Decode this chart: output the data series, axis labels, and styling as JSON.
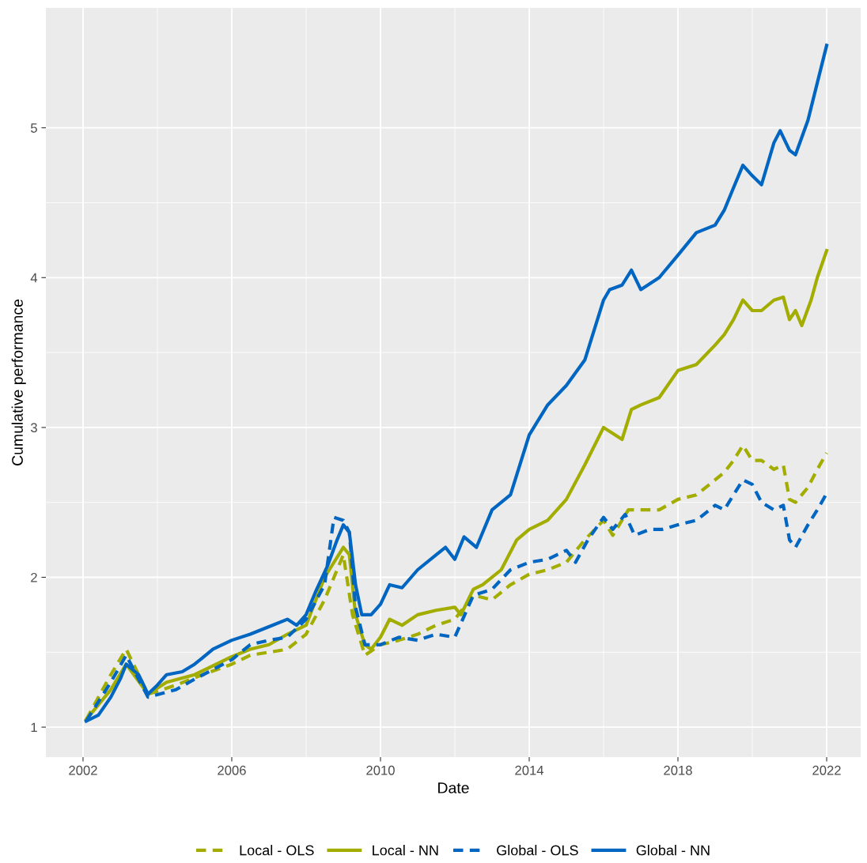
{
  "chart_data": {
    "type": "line",
    "xlabel": "Date",
    "ylabel": "Cumulative performance",
    "xlim": [
      "2001-01",
      "2022-12"
    ],
    "xticks": [
      "2002",
      "2006",
      "2010",
      "2014",
      "2018",
      "2022"
    ],
    "ylim": [
      0.8,
      5.8
    ],
    "yticks": [
      1,
      2,
      3,
      4,
      5
    ],
    "grid": true,
    "legend": "bottom",
    "series": [
      {
        "name": "Local - OLS",
        "color": "#a3ad00",
        "line_style": "dashed",
        "x": [
          "2002-02",
          "2002-10",
          "2003-03",
          "2003-10",
          "2004-07",
          "2005-01",
          "2006-01",
          "2006-07",
          "2007-01",
          "2007-07",
          "2008-01",
          "2008-07",
          "2009-01",
          "2009-04",
          "2009-08",
          "2010-01",
          "2010-07",
          "2011-01",
          "2011-07",
          "2012-01",
          "2012-07",
          "2013-01",
          "2013-07",
          "2014-01",
          "2014-07",
          "2015-01",
          "2015-07",
          "2016-01",
          "2016-04",
          "2016-09",
          "2017-01",
          "2017-07",
          "2018-01",
          "2018-07",
          "2019-01",
          "2019-04",
          "2019-07",
          "2019-10",
          "2020-01",
          "2020-04",
          "2020-08",
          "2020-11",
          "2021-01",
          "2021-03",
          "2021-07",
          "2021-10",
          "2022-01"
        ],
        "values": [
          1.05,
          1.35,
          1.52,
          1.22,
          1.28,
          1.33,
          1.42,
          1.48,
          1.5,
          1.52,
          1.62,
          1.85,
          2.15,
          1.75,
          1.48,
          1.55,
          1.58,
          1.62,
          1.68,
          1.72,
          1.88,
          1.85,
          1.95,
          2.02,
          2.05,
          2.1,
          2.25,
          2.38,
          2.28,
          2.45,
          2.45,
          2.45,
          2.52,
          2.55,
          2.65,
          2.7,
          2.78,
          2.88,
          2.78,
          2.78,
          2.72,
          2.75,
          2.52,
          2.5,
          2.6,
          2.72,
          2.83
        ]
      },
      {
        "name": "Local - NN",
        "color": "#a3ad00",
        "line_style": "solid",
        "x": [
          "2002-02",
          "2002-10",
          "2003-03",
          "2003-10",
          "2004-04",
          "2005-01",
          "2006-01",
          "2006-07",
          "2007-01",
          "2007-07",
          "2008-01",
          "2008-07",
          "2008-10",
          "2009-01",
          "2009-03",
          "2009-05",
          "2009-08",
          "2009-10",
          "2010-01",
          "2010-04",
          "2010-08",
          "2011-01",
          "2011-07",
          "2012-01",
          "2012-03",
          "2012-07",
          "2012-10",
          "2013-04",
          "2013-09",
          "2014-01",
          "2014-07",
          "2015-01",
          "2015-07",
          "2016-01",
          "2016-07",
          "2016-10",
          "2017-01",
          "2017-07",
          "2018-01",
          "2018-07",
          "2019-01",
          "2019-04",
          "2019-07",
          "2019-10",
          "2020-01",
          "2020-04",
          "2020-08",
          "2020-11",
          "2021-01",
          "2021-03",
          "2021-05",
          "2021-08",
          "2021-10",
          "2022-01"
        ],
        "values": [
          1.05,
          1.25,
          1.42,
          1.22,
          1.3,
          1.35,
          1.47,
          1.52,
          1.55,
          1.62,
          1.68,
          2.0,
          2.1,
          2.2,
          2.15,
          1.75,
          1.55,
          1.52,
          1.6,
          1.72,
          1.68,
          1.75,
          1.78,
          1.8,
          1.75,
          1.92,
          1.95,
          2.05,
          2.25,
          2.32,
          2.38,
          2.52,
          2.75,
          3.0,
          2.92,
          3.12,
          3.15,
          3.2,
          3.38,
          3.42,
          3.55,
          3.62,
          3.72,
          3.85,
          3.78,
          3.78,
          3.85,
          3.87,
          3.72,
          3.78,
          3.68,
          3.85,
          4.0,
          4.18
        ]
      },
      {
        "name": "Global - OLS",
        "color": "#0066c2",
        "line_style": "dashed",
        "x": [
          "2002-02",
          "2002-10",
          "2003-03",
          "2003-10",
          "2004-07",
          "2005-01",
          "2006-01",
          "2006-07",
          "2007-01",
          "2007-07",
          "2008-01",
          "2008-07",
          "2008-10",
          "2009-01",
          "2009-03",
          "2009-05",
          "2009-08",
          "2010-01",
          "2010-07",
          "2011-01",
          "2011-07",
          "2012-01",
          "2012-07",
          "2013-01",
          "2013-07",
          "2014-01",
          "2014-07",
          "2015-01",
          "2015-04",
          "2015-08",
          "2016-01",
          "2016-04",
          "2016-08",
          "2016-11",
          "2017-04",
          "2017-08",
          "2018-01",
          "2018-07",
          "2019-01",
          "2019-04",
          "2019-07",
          "2019-10",
          "2020-01",
          "2020-04",
          "2020-08",
          "2020-11",
          "2021-01",
          "2021-03",
          "2021-07",
          "2021-10",
          "2022-01"
        ],
        "values": [
          1.04,
          1.3,
          1.48,
          1.2,
          1.25,
          1.32,
          1.45,
          1.55,
          1.58,
          1.6,
          1.72,
          1.95,
          2.4,
          2.38,
          2.3,
          1.8,
          1.55,
          1.55,
          1.6,
          1.58,
          1.62,
          1.6,
          1.88,
          1.92,
          2.05,
          2.1,
          2.12,
          2.18,
          2.1,
          2.25,
          2.4,
          2.32,
          2.42,
          2.28,
          2.32,
          2.32,
          2.35,
          2.38,
          2.48,
          2.45,
          2.55,
          2.65,
          2.62,
          2.5,
          2.45,
          2.48,
          2.25,
          2.2,
          2.35,
          2.45,
          2.56
        ]
      },
      {
        "name": "Global - NN",
        "color": "#0066c2",
        "line_style": "solid",
        "x": [
          "2002-02",
          "2002-06",
          "2002-10",
          "2003-01",
          "2003-03",
          "2003-07",
          "2003-10",
          "2004-01",
          "2004-04",
          "2004-09",
          "2005-01",
          "2005-07",
          "2006-01",
          "2006-07",
          "2007-01",
          "2007-07",
          "2007-10",
          "2008-01",
          "2008-04",
          "2008-08",
          "2008-11",
          "2009-01",
          "2009-03",
          "2009-05",
          "2009-07",
          "2009-10",
          "2010-01",
          "2010-04",
          "2010-08",
          "2011-01",
          "2011-07",
          "2011-10",
          "2012-01",
          "2012-04",
          "2012-08",
          "2013-01",
          "2013-07",
          "2014-01",
          "2014-07",
          "2015-01",
          "2015-07",
          "2016-01",
          "2016-03",
          "2016-07",
          "2016-10",
          "2017-01",
          "2017-07",
          "2018-01",
          "2018-07",
          "2019-01",
          "2019-04",
          "2019-07",
          "2019-10",
          "2020-01",
          "2020-04",
          "2020-08",
          "2020-10",
          "2021-01",
          "2021-03",
          "2021-07",
          "2021-10",
          "2022-01"
        ],
        "values": [
          1.04,
          1.08,
          1.2,
          1.32,
          1.42,
          1.35,
          1.22,
          1.28,
          1.35,
          1.37,
          1.42,
          1.52,
          1.58,
          1.62,
          1.67,
          1.72,
          1.68,
          1.75,
          1.9,
          2.08,
          2.25,
          2.35,
          2.3,
          1.95,
          1.75,
          1.75,
          1.82,
          1.95,
          1.93,
          2.05,
          2.15,
          2.2,
          2.12,
          2.27,
          2.2,
          2.45,
          2.55,
          2.95,
          3.15,
          3.28,
          3.45,
          3.85,
          3.92,
          3.95,
          4.05,
          3.92,
          4.0,
          4.15,
          4.3,
          4.35,
          4.45,
          4.6,
          4.75,
          4.68,
          4.62,
          4.9,
          4.98,
          4.85,
          4.82,
          5.05,
          5.3,
          5.55
        ]
      }
    ]
  }
}
